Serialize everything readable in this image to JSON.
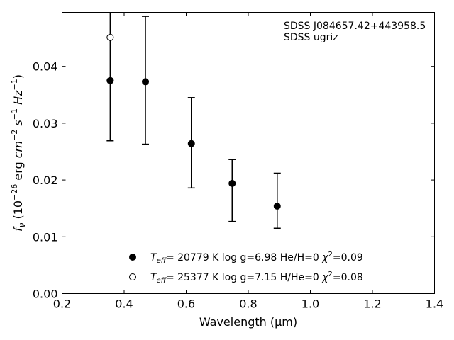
{
  "chart_data": {
    "type": "scatter",
    "title": "",
    "xlabel": "Wavelength (",
    "xlabel_unit": "μm",
    "xlabel_tail": ")",
    "ylabel_parts": {
      "f": "f",
      "nu": "ν",
      "open": " (10",
      "exp26": "−26",
      "erg": " erg ",
      "cm": "cm",
      "expm2": "−2",
      "s": " s",
      "expm1a": "−1",
      "hz": " Hz",
      "expm1b": "−1",
      "close": ")"
    },
    "xlim": [
      0.2,
      1.4
    ],
    "ylim": [
      0.0,
      0.0495
    ],
    "xticks": [
      0.2,
      0.4,
      0.6,
      0.8,
      1.0,
      1.2,
      1.4
    ],
    "xtick_labels": [
      "0.2",
      "0.4",
      "0.6",
      "0.8",
      "1.0",
      "1.2",
      "1.4"
    ],
    "yticks": [
      0.0,
      0.01,
      0.02,
      0.03,
      0.04
    ],
    "ytick_labels": [
      "0.00",
      "0.01",
      "0.02",
      "0.03",
      "0.04"
    ],
    "grid": false,
    "annotation": [
      "SDSS J084657.42+443958.5",
      "SDSS ugriz"
    ],
    "observed": {
      "x": [
        0.3551,
        0.4686,
        0.6166,
        0.748,
        0.8932
      ],
      "y": [
        0.0375,
        0.0373,
        0.0264,
        0.0194,
        0.0154
      ],
      "yerr_low": [
        0.0106,
        0.011,
        0.0078,
        0.0067,
        0.0039
      ],
      "yerr_high": [
        0.0125,
        0.0115,
        0.0081,
        0.0042,
        0.0058
      ]
    },
    "series": [
      {
        "marker": "filled",
        "x": [
          0.3551
        ],
        "y": [
          0.0375
        ],
        "legend": {
          "t": "T",
          "eff": "eff",
          "text": "= 20779 K  log g=6.98  He/H=0  ",
          "chi": "χ",
          "sq": "2",
          "val": "=0.09"
        }
      },
      {
        "marker": "open",
        "x": [
          0.3551
        ],
        "y": [
          0.0451
        ],
        "legend": {
          "t": "T",
          "eff": "eff",
          "text": "= 25377 K  log g=7.15  H/He=0  ",
          "chi": "χ",
          "sq": "2",
          "val": "=0.08"
        }
      }
    ],
    "legend_position": "bottom-center"
  }
}
